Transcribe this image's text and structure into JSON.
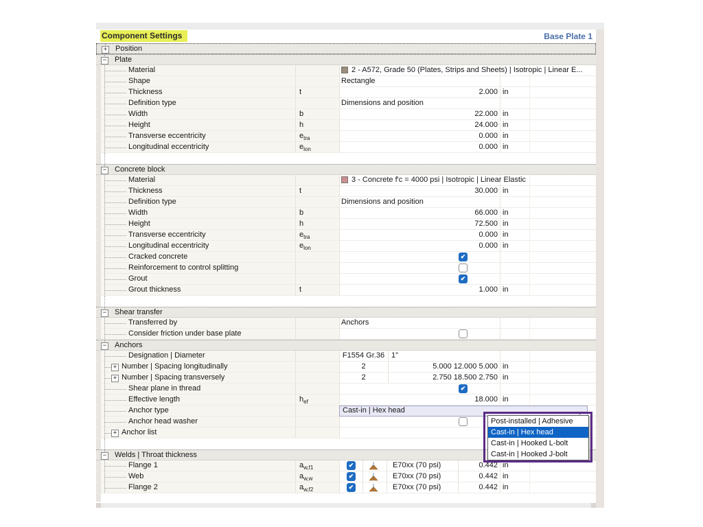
{
  "header": {
    "title": "Component Settings",
    "context": "Base Plate 1",
    "title_highlight_color": "#e9ef55",
    "context_color": "#4a6ea9"
  },
  "annotation": {
    "box_color": "#5c2b87"
  },
  "colors": {
    "checkbox_checked": "#1e6cc2",
    "dropdown_selected": "#0f64c5",
    "section_bg": "#eae8e2",
    "label_bg": "#f6f5ef"
  },
  "rows": [
    {
      "t": "section",
      "label": "Position",
      "expanded": false,
      "focused": true
    },
    {
      "t": "section",
      "label": "Plate",
      "expanded": true
    },
    {
      "t": "prop",
      "label": "Material",
      "val": {
        "kind": "swatch",
        "color": "#9a8d7e",
        "text": "2 - A572, Grade 50 (Plates, Strips and Sheets) | Isotropic | Linear E..."
      }
    },
    {
      "t": "prop",
      "label": "Shape",
      "val": {
        "kind": "text",
        "text": "Rectangle"
      }
    },
    {
      "t": "prop",
      "label": "Thickness",
      "sym": {
        "b": "t"
      },
      "val": {
        "kind": "num",
        "num": "2.000",
        "unit": "in"
      }
    },
    {
      "t": "prop",
      "label": "Definition type",
      "val": {
        "kind": "text",
        "text": "Dimensions and position"
      }
    },
    {
      "t": "prop",
      "label": "Width",
      "sym": {
        "b": "b"
      },
      "val": {
        "kind": "num",
        "num": "22.000",
        "unit": "in"
      }
    },
    {
      "t": "prop",
      "label": "Height",
      "sym": {
        "b": "h"
      },
      "val": {
        "kind": "num",
        "num": "24.000",
        "unit": "in"
      }
    },
    {
      "t": "prop",
      "label": "Transverse eccentricity",
      "sym": {
        "b": "e",
        "s": "tra"
      },
      "val": {
        "kind": "num",
        "num": "0.000",
        "unit": "in"
      }
    },
    {
      "t": "prop",
      "label": "Longitudinal eccentricity",
      "sym": {
        "b": "e",
        "s": "lon"
      },
      "val": {
        "kind": "num",
        "num": "0.000",
        "unit": "in"
      }
    },
    {
      "t": "gap"
    },
    {
      "t": "section",
      "label": "Concrete block",
      "expanded": true
    },
    {
      "t": "prop",
      "label": "Material",
      "val": {
        "kind": "swatch",
        "color": "#c98f93",
        "text": "3 - Concrete f'c = 4000 psi | Isotropic | Linear Elastic"
      }
    },
    {
      "t": "prop",
      "label": "Thickness",
      "sym": {
        "b": "t"
      },
      "val": {
        "kind": "num",
        "num": "30.000",
        "unit": "in"
      }
    },
    {
      "t": "prop",
      "label": "Definition type",
      "val": {
        "kind": "text",
        "text": "Dimensions and position"
      }
    },
    {
      "t": "prop",
      "label": "Width",
      "sym": {
        "b": "b"
      },
      "val": {
        "kind": "num",
        "num": "66.000",
        "unit": "in"
      }
    },
    {
      "t": "prop",
      "label": "Height",
      "sym": {
        "b": "h"
      },
      "val": {
        "kind": "num",
        "num": "72.500",
        "unit": "in"
      }
    },
    {
      "t": "prop",
      "label": "Transverse eccentricity",
      "sym": {
        "b": "e",
        "s": "tra"
      },
      "val": {
        "kind": "num",
        "num": "0.000",
        "unit": "in"
      }
    },
    {
      "t": "prop",
      "label": "Longitudinal eccentricity",
      "sym": {
        "b": "e",
        "s": "lon"
      },
      "val": {
        "kind": "num",
        "num": "0.000",
        "unit": "in"
      }
    },
    {
      "t": "prop",
      "label": "Cracked concrete",
      "val": {
        "kind": "check",
        "checked": true
      }
    },
    {
      "t": "prop",
      "label": "Reinforcement to control splitting",
      "val": {
        "kind": "check",
        "checked": false
      }
    },
    {
      "t": "prop",
      "label": "Grout",
      "val": {
        "kind": "check",
        "checked": true
      }
    },
    {
      "t": "prop",
      "label": "Grout thickness",
      "sym": {
        "b": "t"
      },
      "val": {
        "kind": "num",
        "num": "1.000",
        "unit": "in"
      }
    },
    {
      "t": "gap"
    },
    {
      "t": "section",
      "label": "Shear transfer",
      "expanded": true
    },
    {
      "t": "prop",
      "label": "Transferred by",
      "val": {
        "kind": "text",
        "text": "Anchors"
      }
    },
    {
      "t": "prop",
      "label": "Consider friction under base plate",
      "val": {
        "kind": "check",
        "checked": false
      }
    },
    {
      "t": "section",
      "label": "Anchors",
      "expanded": true
    },
    {
      "t": "prop",
      "label": "Designation | Diameter",
      "val": {
        "kind": "two",
        "a": "F1554 Gr.36",
        "b": "1\""
      }
    },
    {
      "t": "prop",
      "label": "Number | Spacing longitudinally",
      "expandable": true,
      "val": {
        "kind": "numpair",
        "a": "2",
        "b": "5.000 12.000 5.000",
        "unit": "in"
      }
    },
    {
      "t": "prop",
      "label": "Number | Spacing transversely",
      "expandable": true,
      "val": {
        "kind": "numpair",
        "a": "2",
        "b": "2.750 18.500 2.750",
        "unit": "in"
      }
    },
    {
      "t": "prop",
      "label": "Shear plane in thread",
      "val": {
        "kind": "check",
        "checked": true
      }
    },
    {
      "t": "prop",
      "label": "Effective length",
      "sym": {
        "b": "h",
        "s": "ef"
      },
      "val": {
        "kind": "num",
        "num": "18.000",
        "unit": "in"
      }
    },
    {
      "t": "prop",
      "label": "Anchor type",
      "val": {
        "kind": "select",
        "text": "Cast-in | Hex head"
      }
    },
    {
      "t": "prop",
      "label": "Anchor head washer",
      "val": {
        "kind": "check",
        "checked": false
      }
    },
    {
      "t": "prop",
      "label": "Anchor list",
      "expandable": true,
      "val": {
        "kind": "empty"
      }
    },
    {
      "t": "gap"
    },
    {
      "t": "section",
      "label": "Welds | Throat thickness",
      "expanded": true
    },
    {
      "t": "prop",
      "label": "Flange 1",
      "sym": {
        "b": "a",
        "s": "w,f1"
      },
      "val": {
        "kind": "weld",
        "checked": true,
        "electrode": "E70xx (70 psi)",
        "num": "0.442",
        "unit": "in"
      }
    },
    {
      "t": "prop",
      "label": "Web",
      "sym": {
        "b": "a",
        "s": "w,w"
      },
      "val": {
        "kind": "weld",
        "checked": true,
        "electrode": "E70xx (70 psi)",
        "num": "0.442",
        "unit": "in"
      }
    },
    {
      "t": "prop",
      "label": "Flange 2",
      "sym": {
        "b": "a",
        "s": "w,f2"
      },
      "val": {
        "kind": "weld",
        "checked": true,
        "electrode": "E70xx (70 psi)",
        "num": "0.442",
        "unit": "in"
      }
    },
    {
      "t": "gap",
      "last": true
    }
  ],
  "dropdown": {
    "items": [
      "Post-installed | Adhesive",
      "Cast-in | Hex head",
      "Cast-in | Hooked L-bolt",
      "Cast-in | Hooked J-bolt"
    ],
    "selected": "Cast-in | Hex head",
    "selected_index": 1
  }
}
